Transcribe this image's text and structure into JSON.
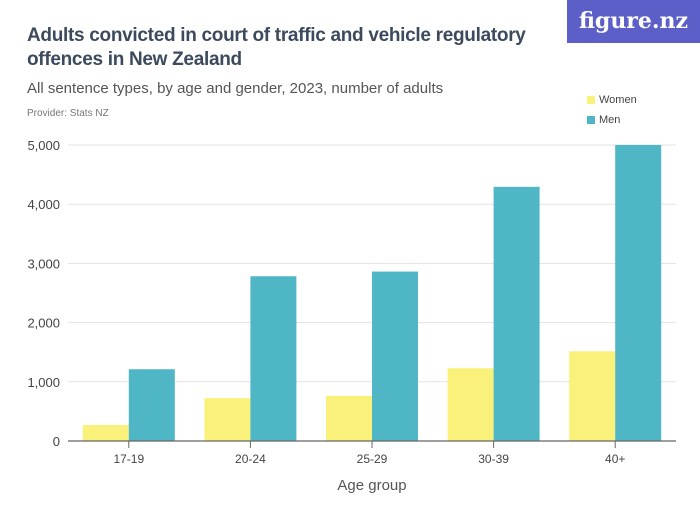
{
  "title": "Adults convicted in court of traffic and vehicle regulatory offences in New Zealand",
  "subtitle": "All sentence types, by age and gender, 2023, number of adults",
  "provider": "Provider: Stats NZ",
  "logo": "figure.nz",
  "colors": {
    "Women": "#f9f17a",
    "Men": "#4fb6c5"
  },
  "chart_data": {
    "type": "bar",
    "categories": [
      "17-19",
      "20-24",
      "25-29",
      "30-39",
      "40+"
    ],
    "series": [
      {
        "name": "Women",
        "values": [
          270,
          724,
          763,
          1229,
          1515
        ]
      },
      {
        "name": "Men",
        "values": [
          1212,
          2783,
          2862,
          4293,
          5000
        ]
      }
    ],
    "xlabel": "Age group",
    "ylabel": "",
    "ylim": [
      0,
      5000
    ],
    "yticks": [
      0,
      1000,
      2000,
      3000,
      4000,
      5000
    ],
    "ytick_labels": [
      "0",
      "1,000",
      "2,000",
      "3,000",
      "4,000",
      "5,000"
    ],
    "grid": true,
    "legend": "top-right"
  }
}
